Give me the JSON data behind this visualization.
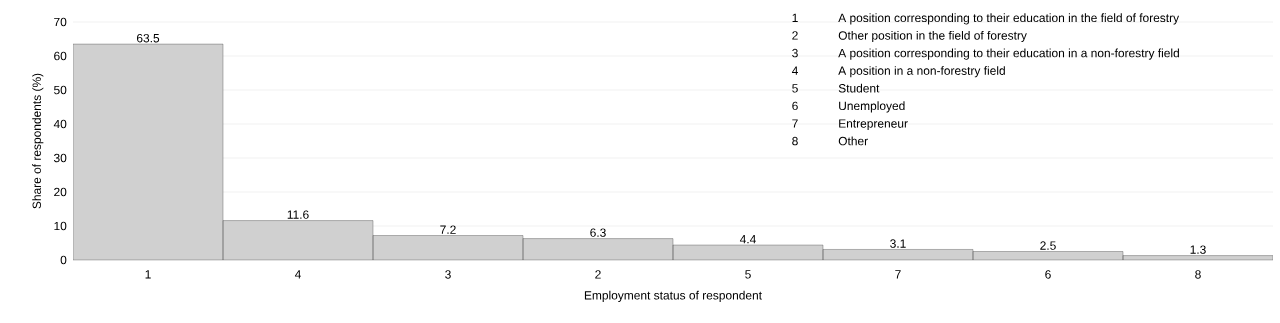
{
  "chart_data": {
    "type": "bar",
    "xlabel": "Employment status of respondent",
    "ylabel": "Share of  respondents (%)",
    "categories": [
      "1",
      "4",
      "3",
      "2",
      "5",
      "7",
      "6",
      "8"
    ],
    "values": [
      63.5,
      11.6,
      7.2,
      6.3,
      4.4,
      3.1,
      2.5,
      1.3
    ],
    "color": "#d0d0d0",
    "data_labels": true,
    "grid": "y",
    "ylim": [
      0,
      70
    ],
    "yticks": [
      0,
      10,
      20,
      30,
      40,
      50,
      60,
      70
    ],
    "annotations": [
      "1",
      "A position corresponding to their education in the field of forestry",
      "2",
      "Other position in the field of forestry",
      "3",
      "A position corresponding to their education in a non-forestry  field",
      "4",
      "A position in a non-forestry  field",
      "5",
      "Student",
      "6",
      "Unemployed",
      "7",
      "Entrepreneur",
      "8",
      "Other"
    ]
  }
}
